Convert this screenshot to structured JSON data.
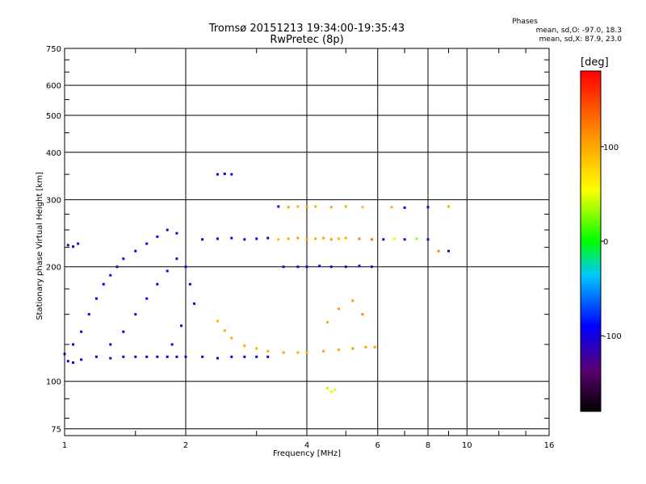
{
  "chart_data": {
    "type": "scatter",
    "title": "Tromsø 20151213 19:34:00-19:35:43",
    "subtitle": "RwPretec (8p)",
    "xlabel": "Frequency [MHz]",
    "ylabel": "Stationary phase Virtual Height [km]",
    "x_scale": "log",
    "y_scale": "log",
    "xlim": [
      1,
      16
    ],
    "ylim": [
      72,
      750
    ],
    "x_ticks": [
      1,
      2,
      4,
      6,
      8,
      10,
      16
    ],
    "y_ticks": [
      75,
      100,
      200,
      300,
      400,
      500,
      600,
      750
    ],
    "grid": true,
    "colorbar": {
      "label": "[deg]",
      "range": [
        -180,
        180
      ],
      "ticks": [
        100,
        0,
        -100
      ]
    },
    "stats": {
      "heading": "Phases",
      "o_mode": "mean, sd,O: -97.0, 18.3",
      "x_mode": "mean, sd,X:  87.9, 23.0"
    },
    "series": [
      {
        "points": [
          [
            1.02,
            113,
            -110
          ],
          [
            1.05,
            112,
            -112
          ],
          [
            1.1,
            114,
            -105
          ],
          [
            1.2,
            116,
            -108
          ],
          [
            1.3,
            115,
            -110
          ],
          [
            1.4,
            116,
            -115
          ],
          [
            1.5,
            116,
            -110
          ],
          [
            1.6,
            116,
            -112
          ],
          [
            1.7,
            116,
            -110
          ],
          [
            1.8,
            116,
            -108
          ],
          [
            1.9,
            116,
            -112
          ],
          [
            2.0,
            116,
            -110
          ],
          [
            2.2,
            116,
            -112
          ],
          [
            2.4,
            115,
            -110
          ],
          [
            2.6,
            116,
            -115
          ],
          [
            2.8,
            116,
            -112
          ],
          [
            3.0,
            116,
            -110
          ],
          [
            3.2,
            116,
            -108
          ]
        ]
      },
      {
        "points": [
          [
            1.0,
            118,
            -100
          ],
          [
            1.05,
            125,
            -95
          ],
          [
            1.1,
            135,
            -110
          ],
          [
            1.15,
            150,
            -105
          ],
          [
            1.2,
            165,
            -110
          ],
          [
            1.25,
            180,
            -100
          ],
          [
            1.3,
            190,
            -112
          ],
          [
            1.35,
            200,
            -108
          ],
          [
            1.4,
            210,
            -110
          ],
          [
            1.5,
            220,
            -105
          ],
          [
            1.6,
            230,
            -110
          ],
          [
            1.7,
            240,
            -108
          ],
          [
            1.8,
            250,
            -112
          ],
          [
            1.9,
            245,
            -110
          ]
        ]
      },
      {
        "points": [
          [
            1.3,
            125,
            -110
          ],
          [
            1.4,
            135,
            -105
          ],
          [
            1.5,
            150,
            -112
          ],
          [
            1.6,
            165,
            -108
          ],
          [
            1.7,
            180,
            -110
          ],
          [
            1.8,
            195,
            -105
          ],
          [
            1.9,
            210,
            -112
          ],
          [
            2.0,
            200,
            -110
          ],
          [
            2.05,
            180,
            -108
          ],
          [
            2.1,
            160,
            -112
          ],
          [
            1.95,
            140,
            -110
          ],
          [
            1.85,
            125,
            -105
          ]
        ]
      },
      {
        "points": [
          [
            1.02,
            228,
            -120
          ],
          [
            1.05,
            226,
            -118
          ],
          [
            1.08,
            230,
            -122
          ]
        ]
      },
      {
        "points": [
          [
            2.2,
            236,
            -110
          ],
          [
            2.4,
            237,
            -112
          ],
          [
            2.6,
            238,
            -108
          ],
          [
            2.8,
            236,
            -110
          ],
          [
            3.0,
            237,
            -105
          ],
          [
            3.2,
            238,
            -110
          ],
          [
            3.4,
            236,
            95
          ],
          [
            3.6,
            237,
            100
          ],
          [
            3.8,
            238,
            110
          ],
          [
            4.0,
            236,
            105
          ],
          [
            4.2,
            237,
            100
          ],
          [
            4.4,
            238,
            108
          ],
          [
            4.6,
            236,
            110
          ],
          [
            4.8,
            237,
            95
          ],
          [
            5.0,
            238,
            100
          ],
          [
            5.4,
            237,
            120
          ],
          [
            5.8,
            236,
            130
          ]
        ]
      },
      {
        "points": [
          [
            2.4,
            144,
            95
          ],
          [
            2.5,
            136,
            100
          ],
          [
            2.6,
            130,
            105
          ],
          [
            2.8,
            124,
            100
          ],
          [
            3.0,
            122,
            95
          ],
          [
            3.2,
            120,
            100
          ],
          [
            3.5,
            119,
            105
          ],
          [
            3.8,
            119,
            100
          ],
          [
            4.0,
            119,
            95
          ],
          [
            4.4,
            120,
            105
          ],
          [
            4.8,
            121,
            100
          ],
          [
            5.2,
            122,
            110
          ],
          [
            5.6,
            123,
            105
          ],
          [
            5.9,
            123,
            100
          ]
        ]
      },
      {
        "points": [
          [
            3.5,
            200,
            -110
          ],
          [
            3.8,
            200,
            -105
          ],
          [
            4.0,
            200,
            -112
          ],
          [
            4.3,
            201,
            -108
          ],
          [
            4.6,
            200,
            -110
          ],
          [
            5.0,
            200,
            -112
          ],
          [
            5.4,
            201,
            -105
          ],
          [
            5.8,
            200,
            -110
          ]
        ]
      },
      {
        "points": [
          [
            2.4,
            350,
            -110
          ],
          [
            2.5,
            351,
            -112
          ],
          [
            2.6,
            350,
            -108
          ],
          [
            3.4,
            288,
            -110
          ],
          [
            3.6,
            287,
            105
          ],
          [
            3.8,
            288,
            100
          ],
          [
            4.0,
            287,
            110
          ],
          [
            4.2,
            288,
            95
          ],
          [
            4.6,
            287,
            105
          ],
          [
            5.0,
            288,
            100
          ],
          [
            5.5,
            287,
            95
          ],
          [
            6.5,
            287,
            100
          ],
          [
            7.0,
            286,
            -105
          ],
          [
            8.0,
            287,
            -110
          ],
          [
            9.0,
            288,
            100
          ]
        ]
      },
      {
        "points": [
          [
            6.2,
            236,
            -110
          ],
          [
            6.6,
            237,
            50
          ],
          [
            7.0,
            236,
            -105
          ],
          [
            7.5,
            237,
            30
          ],
          [
            8.0,
            236,
            -110
          ],
          [
            8.5,
            220,
            120
          ],
          [
            9.0,
            220,
            -105
          ]
        ]
      },
      {
        "points": [
          [
            4.5,
            96,
            40
          ],
          [
            4.6,
            94,
            60
          ],
          [
            4.7,
            95,
            50
          ],
          [
            4.5,
            143,
            100
          ],
          [
            4.8,
            155,
            110
          ],
          [
            5.2,
            163,
            105
          ],
          [
            5.5,
            150,
            120
          ]
        ]
      }
    ]
  }
}
